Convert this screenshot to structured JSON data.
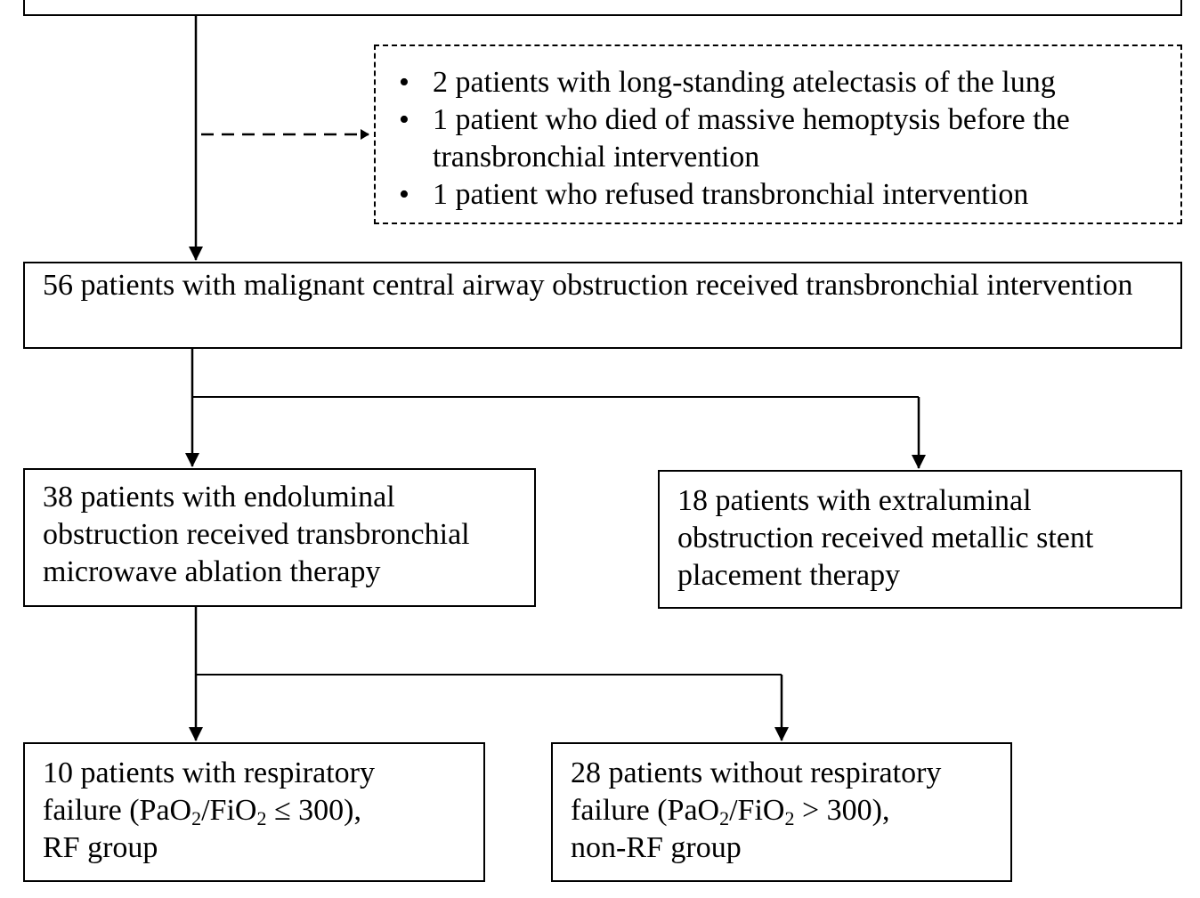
{
  "top_box": {
    "text": ""
  },
  "exclusions": {
    "items": [
      "2 patients with long-standing atelectasis of the lung",
      "1 patient who died of massive hemoptysis before the transbronchial intervention",
      "1 patient who refused transbronchial intervention"
    ]
  },
  "main_cohort": {
    "text": "56 patients with malignant central airway obstruction received transbronchial intervention"
  },
  "endoluminal": {
    "text": "38 patients with endoluminal obstruction received transbronchial microwave ablation therapy"
  },
  "extraluminal": {
    "text": "18 patients with extraluminal obstruction received metallic stent placement therapy"
  },
  "rf_group": {
    "line1": "10 patients with respiratory",
    "pre": "failure (",
    "pao": "PaO",
    "sub1": "2",
    "slash": "/FiO",
    "sub2": "2",
    "post": " ≤ 300),",
    "line3": "RF group"
  },
  "non_rf_group": {
    "line1": "28 patients without respiratory",
    "pre": "failure (",
    "pao": "PaO",
    "sub1": "2",
    "slash": "/FiO",
    "sub2": "2",
    "post": " > 300),",
    "line3": "non-RF group"
  }
}
